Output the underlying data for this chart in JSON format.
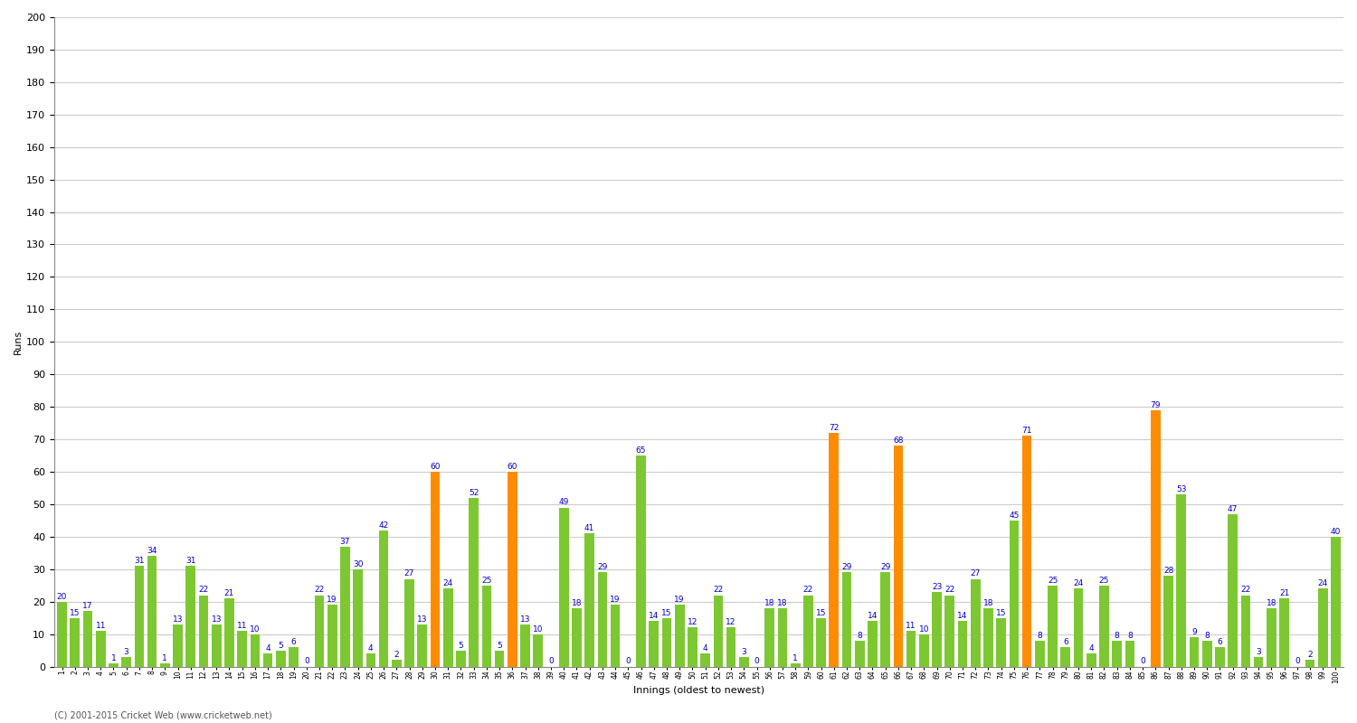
{
  "xlabel": "Innings (oldest to newest)",
  "ylabel": "Runs",
  "ylim": [
    0,
    200
  ],
  "yticks": [
    0,
    10,
    20,
    30,
    40,
    50,
    60,
    70,
    80,
    90,
    100,
    110,
    120,
    130,
    140,
    150,
    160,
    170,
    180,
    190,
    200
  ],
  "background_color": "#ffffff",
  "grid_color": "#cccccc",
  "values": [
    20,
    15,
    17,
    11,
    1,
    3,
    31,
    34,
    1,
    13,
    31,
    22,
    13,
    21,
    11,
    10,
    4,
    5,
    6,
    0,
    22,
    19,
    37,
    30,
    4,
    42,
    2,
    27,
    13,
    60,
    24,
    5,
    52,
    25,
    5,
    60,
    13,
    10,
    0,
    49,
    18,
    41,
    29,
    19,
    0,
    65,
    14,
    15,
    19,
    12,
    4,
    22,
    12,
    3,
    0,
    18,
    18,
    1,
    22,
    15,
    72,
    29,
    8,
    14,
    29,
    68,
    11,
    10,
    23,
    22,
    14,
    27,
    18,
    15,
    45,
    71,
    8,
    25,
    6,
    24,
    4,
    25,
    8,
    8,
    0,
    79,
    28,
    53,
    9,
    8,
    6,
    47,
    22,
    3,
    18,
    21,
    0,
    2,
    24,
    40
  ],
  "colors": [
    "#7dc832",
    "#7dc832",
    "#7dc832",
    "#7dc832",
    "#7dc832",
    "#7dc832",
    "#7dc832",
    "#7dc832",
    "#7dc832",
    "#7dc832",
    "#7dc832",
    "#7dc832",
    "#7dc832",
    "#7dc832",
    "#7dc832",
    "#7dc832",
    "#7dc832",
    "#7dc832",
    "#7dc832",
    "#7dc832",
    "#7dc832",
    "#7dc832",
    "#7dc832",
    "#7dc832",
    "#7dc832",
    "#7dc832",
    "#7dc832",
    "#7dc832",
    "#7dc832",
    "#ff8c00",
    "#7dc832",
    "#7dc832",
    "#7dc832",
    "#7dc832",
    "#7dc832",
    "#ff8c00",
    "#7dc832",
    "#7dc832",
    "#7dc832",
    "#7dc832",
    "#7dc832",
    "#7dc832",
    "#7dc832",
    "#7dc832",
    "#7dc832",
    "#7dc832",
    "#7dc832",
    "#7dc832",
    "#7dc832",
    "#7dc832",
    "#7dc832",
    "#7dc832",
    "#7dc832",
    "#7dc832",
    "#7dc832",
    "#7dc832",
    "#7dc832",
    "#7dc832",
    "#7dc832",
    "#7dc832",
    "#ff8c00",
    "#7dc832",
    "#7dc832",
    "#7dc832",
    "#7dc832",
    "#ff8c00",
    "#7dc832",
    "#7dc832",
    "#7dc832",
    "#7dc832",
    "#7dc832",
    "#7dc832",
    "#7dc832",
    "#7dc832",
    "#7dc832",
    "#ff8c00",
    "#7dc832",
    "#7dc832",
    "#7dc832",
    "#7dc832",
    "#7dc832",
    "#7dc832",
    "#7dc832",
    "#7dc832",
    "#7dc832",
    "#ff8c00",
    "#7dc832",
    "#7dc832",
    "#7dc832",
    "#7dc832",
    "#7dc832",
    "#7dc832",
    "#7dc832",
    "#7dc832",
    "#7dc832",
    "#7dc832",
    "#7dc832",
    "#7dc832",
    "#7dc832",
    "#7dc832"
  ],
  "row1_labels": [
    "-",
    "-",
    "-",
    "-",
    "-",
    "-",
    "-",
    "-",
    "-",
    "-",
    "-",
    "-",
    "-",
    "-",
    "-",
    "-",
    "-",
    "-",
    "-",
    "-",
    "-",
    "-",
    "-",
    "-",
    "-",
    "-",
    "-",
    "-",
    "-",
    "-",
    "-",
    "-",
    "-",
    "-",
    "-",
    "-",
    "-",
    "-",
    "-",
    "-",
    "-",
    "-",
    "-",
    "-",
    "-",
    "-",
    "-",
    "-",
    "-",
    "-",
    "-",
    "-",
    "-",
    "-",
    "-",
    "-",
    "-",
    "-",
    "-",
    "-",
    "-",
    "-",
    "-",
    "-",
    "-",
    "-",
    "-",
    "-",
    "-",
    "-",
    "-",
    "-",
    "-",
    "-",
    "-",
    "-",
    "-",
    "-",
    "-",
    "-",
    "-",
    "-",
    "-",
    "-",
    "-",
    "-",
    "-",
    "-",
    "-",
    "-",
    "-",
    "-",
    "-",
    "-",
    "-",
    "-",
    "-",
    "-",
    "-",
    "-"
  ],
  "row2_labels": [
    "1",
    "2",
    "3",
    "4",
    "5",
    "6",
    "7",
    "8",
    "9",
    "10",
    "11",
    "12",
    "13",
    "14",
    "15",
    "16",
    "17",
    "18",
    "19",
    "20",
    "21",
    "22",
    "23",
    "24",
    "25",
    "26",
    "27",
    "28",
    "29",
    "30",
    "31",
    "32",
    "33",
    "34",
    "35",
    "36",
    "37",
    "38",
    "39",
    "40",
    "41",
    "42",
    "43",
    "44",
    "45",
    "46",
    "47",
    "48",
    "49",
    "50",
    "51",
    "52",
    "53",
    "54",
    "55",
    "56",
    "57",
    "58",
    "59",
    "60",
    "61",
    "62",
    "63",
    "64",
    "65",
    "66",
    "67",
    "68",
    "69",
    "70",
    "71",
    "72",
    "73",
    "74",
    "75",
    "76",
    "77",
    "78",
    "79",
    "80",
    "81",
    "82",
    "83",
    "84",
    "85",
    "86",
    "87",
    "88",
    "89",
    "90",
    "91",
    "92",
    "93",
    "94",
    "95",
    "96",
    "97",
    "98",
    "99",
    "100"
  ],
  "value_fontsize": 6.5,
  "value_color": "#0000cc",
  "footer": "(C) 2001-2015 Cricket Web (www.cricketweb.net)",
  "bar_width": 0.75,
  "xlabel_fontsize": 7,
  "ylabel_fontsize": 8,
  "axis_label_fontsize": 8
}
